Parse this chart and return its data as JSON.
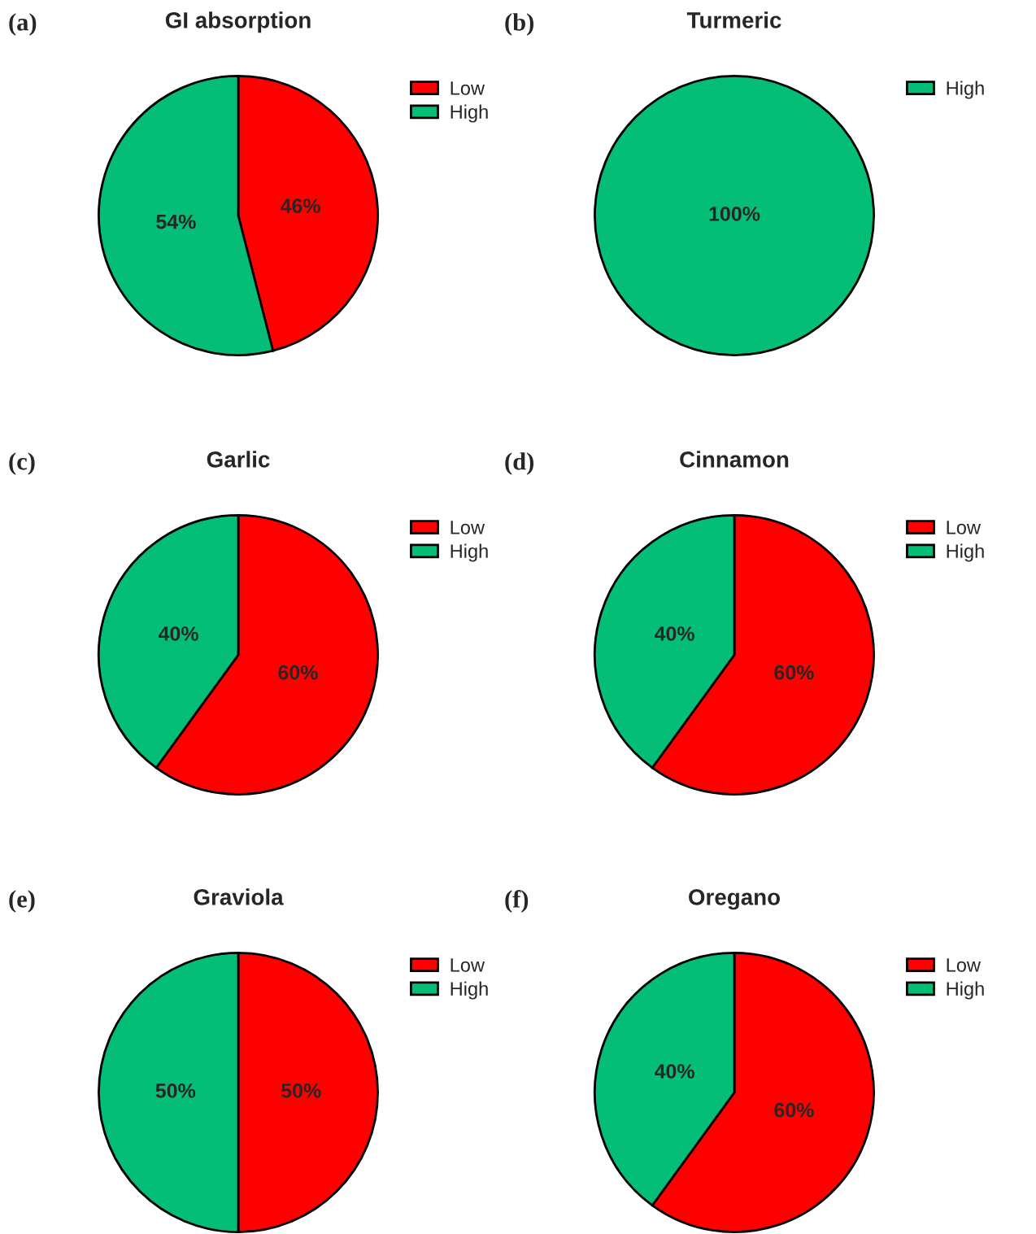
{
  "chart_data": [
    {
      "type": "pie",
      "title": "GI absorption",
      "annotations": [
        "(a)"
      ],
      "categories": [
        "Low",
        "High"
      ],
      "values": [
        46,
        54
      ],
      "value_labels": [
        "46%",
        "54%"
      ],
      "colors": [
        "#ff0000",
        "#04be78"
      ],
      "legend": "right"
    },
    {
      "type": "pie",
      "title": "Turmeric",
      "annotations": [
        "(b)"
      ],
      "categories": [
        "High"
      ],
      "values": [
        100
      ],
      "value_labels": [
        "100%"
      ],
      "colors": [
        "#04be78"
      ],
      "legend": "right"
    },
    {
      "type": "pie",
      "title": "Garlic",
      "annotations": [
        "(c)"
      ],
      "categories": [
        "Low",
        "High"
      ],
      "values": [
        60,
        40
      ],
      "value_labels": [
        "60%",
        "40%"
      ],
      "colors": [
        "#ff0000",
        "#04be78"
      ],
      "legend": "right"
    },
    {
      "type": "pie",
      "title": "Cinnamon",
      "annotations": [
        "(d)"
      ],
      "categories": [
        "Low",
        "High"
      ],
      "values": [
        60,
        40
      ],
      "value_labels": [
        "60%",
        "40%"
      ],
      "colors": [
        "#ff0000",
        "#04be78"
      ],
      "legend": "right"
    },
    {
      "type": "pie",
      "title": "Graviola",
      "annotations": [
        "(e)"
      ],
      "categories": [
        "Low",
        "High"
      ],
      "values": [
        50,
        50
      ],
      "value_labels": [
        "50%",
        "50%"
      ],
      "colors": [
        "#ff0000",
        "#04be78"
      ],
      "legend": "right"
    },
    {
      "type": "pie",
      "title": "Oregano",
      "annotations": [
        "(f)"
      ],
      "categories": [
        "Low",
        "High"
      ],
      "values": [
        60,
        40
      ],
      "value_labels": [
        "60%",
        "40%"
      ],
      "colors": [
        "#ff0000",
        "#04be78"
      ],
      "legend": "right"
    }
  ]
}
